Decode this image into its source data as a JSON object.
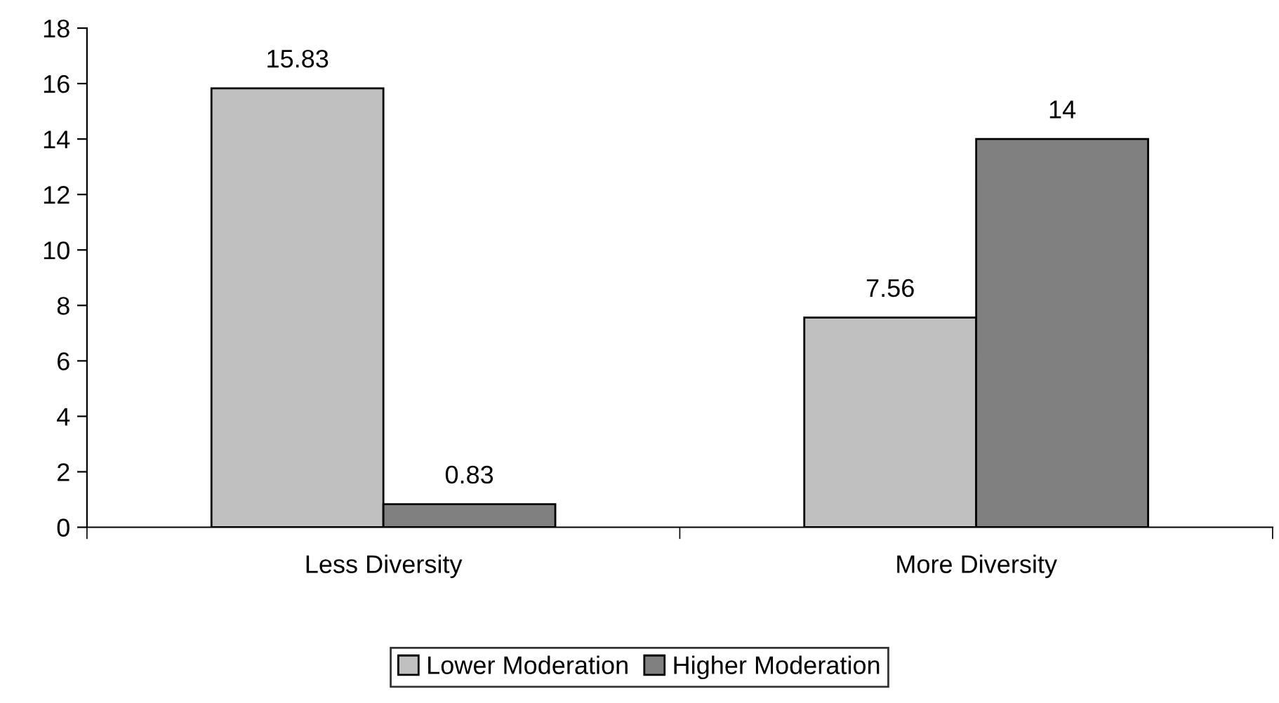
{
  "chart_data": {
    "type": "bar",
    "categories": [
      "Less Diversity",
      "More Diversity"
    ],
    "series": [
      {
        "name": "Lower Moderation",
        "color": "#c0c0c0",
        "values": [
          15.83,
          7.56
        ]
      },
      {
        "name": "Higher Moderation",
        "color": "#808080",
        "values": [
          0.83,
          14
        ]
      }
    ],
    "ylim": [
      0,
      18
    ],
    "yticks": [
      0,
      2,
      4,
      6,
      8,
      10,
      12,
      14,
      16,
      18
    ],
    "data_labels": true,
    "grid": false,
    "legend": "bottom"
  }
}
